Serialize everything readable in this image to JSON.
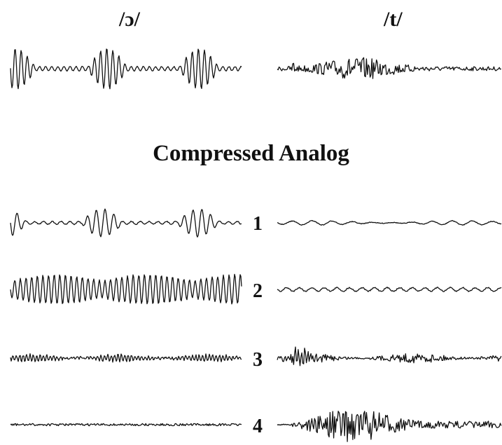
{
  "figure": {
    "left_title": "/ɔ/",
    "right_title": "/t/",
    "heading": "Compressed Analog",
    "channels": [
      "1",
      "2",
      "3",
      "4"
    ]
  }
}
